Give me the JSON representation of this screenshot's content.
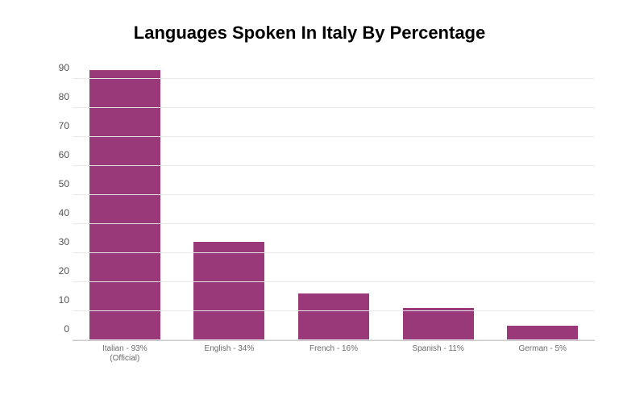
{
  "chart": {
    "type": "bar",
    "title": "Languages Spoken In Italy By Percentage",
    "title_fontsize": 22,
    "title_weight": "700",
    "title_color": "#000000",
    "categories": [
      "Italian - 93%\n(Official)",
      "English - 34%",
      "French - 16%",
      "Spanish - 11%",
      "German - 5%"
    ],
    "values": [
      93,
      34,
      16,
      11,
      5
    ],
    "bar_color": "#9a397a",
    "bar_width": 0.68,
    "background_color": "#ffffff",
    "grid_color": "#e8e8e8",
    "axis_line_color": "#c8c8c8",
    "ylim": [
      0,
      95
    ],
    "yticks": [
      0,
      10,
      20,
      30,
      40,
      50,
      60,
      70,
      80,
      90
    ],
    "ytick_fontsize": 12,
    "ytick_color": "#555555",
    "xlabel_fontsize": 10,
    "xlabel_color": "#6b6b6b"
  }
}
